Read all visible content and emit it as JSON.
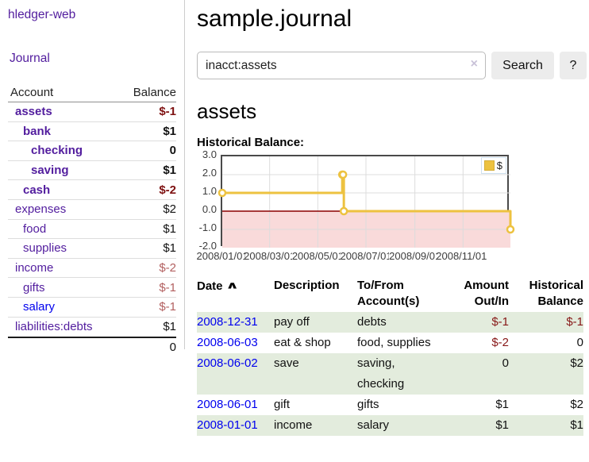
{
  "app": {
    "brand": "hledger-web"
  },
  "sidebar": {
    "nav": [
      {
        "label": "Journal"
      }
    ],
    "accounts_table": {
      "headers": {
        "account": "Account",
        "balance": "Balance"
      },
      "rows": [
        {
          "name": "assets",
          "depth": 1,
          "bold": true,
          "link": "purple",
          "balance": "$-1",
          "tone": "neg-strong"
        },
        {
          "name": "bank",
          "depth": 2,
          "bold": true,
          "link": "purple",
          "balance": "$1",
          "tone": "pos"
        },
        {
          "name": "checking",
          "depth": 3,
          "bold": true,
          "link": "purple",
          "balance": "0",
          "tone": "pos"
        },
        {
          "name": "saving",
          "depth": 3,
          "bold": true,
          "link": "purple",
          "balance": "$1",
          "tone": "pos"
        },
        {
          "name": "cash",
          "depth": 2,
          "bold": true,
          "link": "purple",
          "balance": "$-2",
          "tone": "neg-strong"
        },
        {
          "name": "expenses",
          "depth": 1,
          "bold": false,
          "link": "purple",
          "balance": "$2",
          "tone": "pos"
        },
        {
          "name": "food",
          "depth": 2,
          "bold": false,
          "link": "purple",
          "balance": "$1",
          "tone": "pos"
        },
        {
          "name": "supplies",
          "depth": 2,
          "bold": false,
          "link": "purple",
          "balance": "$1",
          "tone": "pos"
        },
        {
          "name": "income",
          "depth": 1,
          "bold": false,
          "link": "purple",
          "balance": "$-2",
          "tone": "neg-soft"
        },
        {
          "name": "gifts",
          "depth": 2,
          "bold": false,
          "link": "purple",
          "balance": "$-1",
          "tone": "neg-soft"
        },
        {
          "name": "salary",
          "depth": 2,
          "bold": false,
          "link": "blue",
          "balance": "$-1",
          "tone": "neg-soft"
        },
        {
          "name": "liabilities:debts",
          "depth": 1,
          "bold": false,
          "link": "purple",
          "balance": "$1",
          "tone": "pos"
        }
      ],
      "total": "0"
    }
  },
  "main": {
    "title": "sample.journal",
    "search": {
      "value": "inacct:assets",
      "clear_icon": "×",
      "button": "Search",
      "help_button": "?"
    },
    "account_heading": "assets"
  },
  "chart_data": {
    "type": "line",
    "title": "Historical Balance:",
    "legend": [
      {
        "label": "$",
        "color": "#edc240"
      }
    ],
    "legend_position": "top-right",
    "grid": true,
    "step": true,
    "x_range": [
      "2008-01-01",
      "2008-12-31"
    ],
    "y_range": [
      -2,
      3
    ],
    "y_ticks": [
      "3.0",
      "2.0",
      "1.0",
      "0.0",
      "-1.0",
      "-2.0"
    ],
    "x_tick_dates": [
      "2008-01-01",
      "2008-03-01",
      "2008-05-01",
      "2008-07-01",
      "2008-09-01",
      "2008-11-01"
    ],
    "x_tick_labels": [
      "2008/01/01",
      "2008/03/01",
      "2008/05/01",
      "2008/07/01",
      "2008/09/01",
      "2008/11/01"
    ],
    "series": [
      {
        "name": "$",
        "color": "#edc240",
        "points": [
          [
            "2008-01-01",
            1
          ],
          [
            "2008-06-01",
            2
          ],
          [
            "2008-06-02",
            2
          ],
          [
            "2008-06-03",
            0
          ],
          [
            "2008-12-31",
            -1
          ]
        ]
      }
    ],
    "zero_line_color": "#8b0000",
    "negative_region_color": "#f9dada",
    "gridline_color": "#dcdcdc"
  },
  "register": {
    "headers": [
      "Date",
      "Description",
      "To/From Account(s)",
      "Amount Out/In",
      "Historical Balance"
    ],
    "sort_icon": "∧",
    "rows": [
      {
        "date": "2008-12-31",
        "description": "pay off",
        "accounts": "debts",
        "amount": "$-1",
        "amount_negative": true,
        "balance": "$-1",
        "balance_negative": true,
        "shaded": true
      },
      {
        "date": "2008-06-03",
        "description": "eat & shop",
        "accounts": "food, supplies",
        "amount": "$-2",
        "amount_negative": true,
        "balance": "0",
        "balance_negative": false,
        "shaded": false
      },
      {
        "date": "2008-06-02",
        "description": "save",
        "accounts": "saving, checking",
        "amount": "0",
        "amount_negative": false,
        "balance": "$2",
        "balance_negative": false,
        "shaded": true
      },
      {
        "date": "2008-06-01",
        "description": "gift",
        "accounts": "gifts",
        "amount": "$1",
        "amount_negative": false,
        "balance": "$2",
        "balance_negative": false,
        "shaded": false
      },
      {
        "date": "2008-01-01",
        "description": "income",
        "accounts": "salary",
        "amount": "$1",
        "amount_negative": false,
        "balance": "$1",
        "balance_negative": false,
        "shaded": true
      }
    ]
  },
  "colors": {
    "link_purple": "#521d9e",
    "link_blue": "#0000ee",
    "negative_strong": "#7e1111",
    "negative_soft": "#b25f5f",
    "row_green": "#e3ecdd",
    "series_gold": "#edc240"
  }
}
